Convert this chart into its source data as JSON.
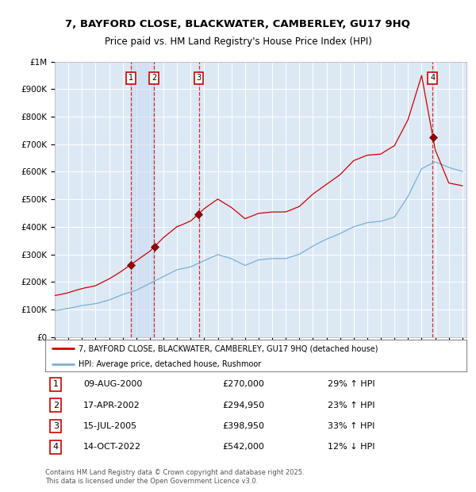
{
  "title_line1": "7, BAYFORD CLOSE, BLACKWATER, CAMBERLEY, GU17 9HQ",
  "title_line2": "Price paid vs. HM Land Registry's House Price Index (HPI)",
  "bg_color": "#dce9f5",
  "red_line_color": "#cc0000",
  "blue_line_color": "#7bafd4",
  "legend_red_label": "7, BAYFORD CLOSE, BLACKWATER, CAMBERLEY, GU17 9HQ (detached house)",
  "legend_blue_label": "HPI: Average price, detached house, Rushmoor",
  "ytick_values": [
    0,
    100000,
    200000,
    300000,
    400000,
    500000,
    600000,
    700000,
    800000,
    900000,
    1000000
  ],
  "transactions": [
    {
      "num": 1,
      "date": "09-AUG-2000",
      "price": 270000,
      "pct": "29%",
      "dir": "↑",
      "year": 2000.6
    },
    {
      "num": 2,
      "date": "17-APR-2002",
      "price": 294950,
      "pct": "23%",
      "dir": "↑",
      "year": 2002.3
    },
    {
      "num": 3,
      "date": "15-JUL-2005",
      "price": 398950,
      "pct": "33%",
      "dir": "↑",
      "year": 2005.6
    },
    {
      "num": 4,
      "date": "14-OCT-2022",
      "price": 542000,
      "pct": "12%",
      "dir": "↓",
      "year": 2022.8
    }
  ],
  "footer_line1": "Contains HM Land Registry data © Crown copyright and database right 2025.",
  "footer_line2": "This data is licensed under the Open Government Licence v3.0.",
  "hpi_years": [
    1995,
    1996,
    1997,
    1998,
    1999,
    2000,
    2001,
    2002,
    2003,
    2004,
    2005,
    2006,
    2007,
    2008,
    2009,
    2010,
    2011,
    2012,
    2013,
    2014,
    2015,
    2016,
    2017,
    2018,
    2019,
    2020,
    2021,
    2022,
    2023,
    2024,
    2025
  ],
  "hpi_vals": [
    95000,
    103000,
    114000,
    121000,
    135000,
    155000,
    170000,
    195000,
    220000,
    245000,
    255000,
    278000,
    300000,
    285000,
    260000,
    280000,
    285000,
    285000,
    300000,
    330000,
    355000,
    375000,
    400000,
    415000,
    420000,
    435000,
    510000,
    610000,
    635000,
    615000,
    600000
  ],
  "red_years": [
    1995,
    1996,
    1997,
    1998,
    1999,
    2000,
    2001,
    2002,
    2003,
    2004,
    2005,
    2006,
    2007,
    2008,
    2009,
    2010,
    2011,
    2012,
    2013,
    2014,
    2015,
    2016,
    2017,
    2018,
    2019,
    2020,
    2021,
    2022,
    2023,
    2024,
    2025
  ],
  "red_vals": [
    150000,
    160000,
    175000,
    185000,
    210000,
    240000,
    275000,
    310000,
    360000,
    400000,
    420000,
    465000,
    500000,
    470000,
    430000,
    450000,
    455000,
    455000,
    475000,
    520000,
    555000,
    590000,
    640000,
    660000,
    665000,
    695000,
    790000,
    950000,
    680000,
    560000,
    550000
  ]
}
